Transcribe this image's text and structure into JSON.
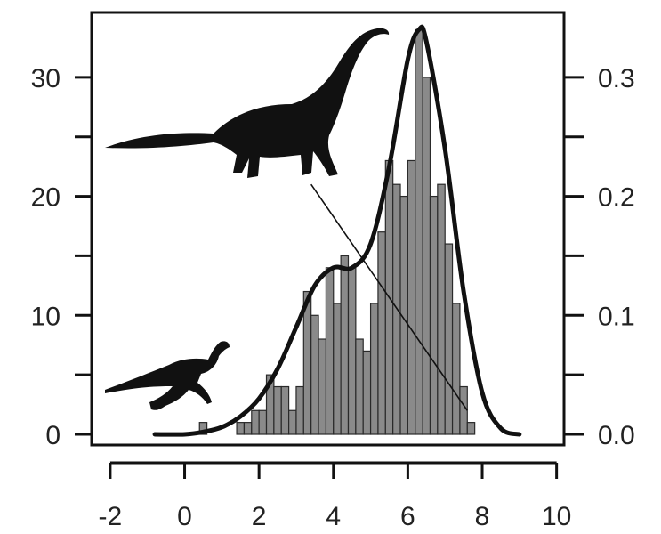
{
  "chart_data": {
    "type": "bar",
    "x_axis": {
      "range": [
        -2.5,
        10.2
      ],
      "ticks": [
        -2,
        0,
        2,
        4,
        6,
        8,
        10
      ],
      "tick_labels": [
        "-2",
        "0",
        "2",
        "4",
        "6",
        "8",
        "10"
      ]
    },
    "y_left": {
      "range": [
        0,
        35
      ],
      "ticks": [
        0,
        10,
        20,
        30
      ],
      "tick_labels": [
        "0",
        "10",
        "20",
        "30"
      ]
    },
    "y_right": {
      "range": [
        0,
        0.35
      ],
      "ticks": [
        0.0,
        0.1,
        0.2,
        0.3
      ],
      "tick_labels": [
        "0.0",
        "0.1",
        "0.2",
        "0.3"
      ]
    },
    "histogram": {
      "bin_width": 0.2,
      "bins": [
        {
          "x": 0.5,
          "count": 1
        },
        {
          "x": 1.5,
          "count": 1
        },
        {
          "x": 1.7,
          "count": 1
        },
        {
          "x": 1.9,
          "count": 2
        },
        {
          "x": 2.1,
          "count": 2
        },
        {
          "x": 2.3,
          "count": 5
        },
        {
          "x": 2.5,
          "count": 4
        },
        {
          "x": 2.7,
          "count": 4
        },
        {
          "x": 2.9,
          "count": 2
        },
        {
          "x": 3.1,
          "count": 4
        },
        {
          "x": 3.3,
          "count": 12
        },
        {
          "x": 3.5,
          "count": 10
        },
        {
          "x": 3.7,
          "count": 8
        },
        {
          "x": 3.9,
          "count": 14
        },
        {
          "x": 4.1,
          "count": 11
        },
        {
          "x": 4.3,
          "count": 15
        },
        {
          "x": 4.5,
          "count": 14
        },
        {
          "x": 4.7,
          "count": 8
        },
        {
          "x": 4.9,
          "count": 7
        },
        {
          "x": 5.1,
          "count": 11
        },
        {
          "x": 5.3,
          "count": 17
        },
        {
          "x": 5.5,
          "count": 23
        },
        {
          "x": 5.7,
          "count": 21
        },
        {
          "x": 5.9,
          "count": 20
        },
        {
          "x": 6.1,
          "count": 23
        },
        {
          "x": 6.3,
          "count": 34
        },
        {
          "x": 6.5,
          "count": 30
        },
        {
          "x": 6.7,
          "count": 20
        },
        {
          "x": 6.9,
          "count": 21
        },
        {
          "x": 7.1,
          "count": 16
        },
        {
          "x": 7.3,
          "count": 11
        },
        {
          "x": 7.5,
          "count": 4
        },
        {
          "x": 7.7,
          "count": 1
        }
      ]
    },
    "density": {
      "x": [
        -0.8,
        0,
        0.5,
        1,
        1.5,
        2,
        2.5,
        3,
        3.5,
        4,
        4.5,
        5,
        5.5,
        6,
        6.3,
        6.5,
        7,
        7.5,
        8,
        8.5,
        9
      ],
      "y": [
        0.0,
        0.0,
        0.002,
        0.006,
        0.015,
        0.03,
        0.055,
        0.09,
        0.125,
        0.14,
        0.14,
        0.16,
        0.225,
        0.315,
        0.34,
        0.33,
        0.24,
        0.12,
        0.035,
        0.005,
        0.0
      ]
    },
    "trend_line": {
      "x": [
        3.4,
        7.6
      ],
      "y": [
        21,
        2
      ]
    },
    "silhouettes": [
      "sauropod-silhouette",
      "small-theropod-silhouette"
    ]
  }
}
